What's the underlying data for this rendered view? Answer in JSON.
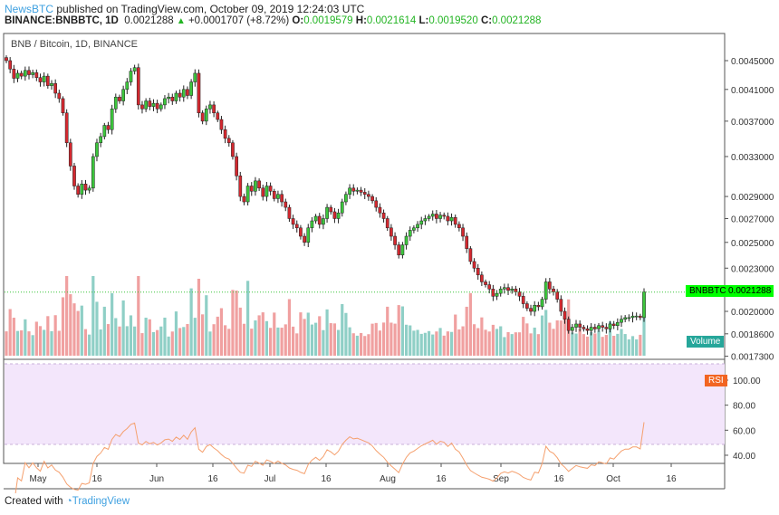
{
  "header": {
    "publisher": "NewsBTC",
    "published_text": "published on TradingView.com, October 09, 2019 12:24:03 UTC",
    "symbol": "BINANCE:BNBBTC, 1D",
    "last": "0.0021288",
    "change": "+0.0001707 (+8.72%)",
    "o_label": "O:",
    "o": "0.0019579",
    "h_label": "H:",
    "h": "0.0021614",
    "l_label": "L:",
    "l": "0.0019520",
    "c_label": "C:",
    "c": "0.0021288"
  },
  "chart_title": "BNB / Bitcoin, 1D, BINANCE",
  "price_tag": {
    "symbol": "BNBBTC",
    "value": "0.0021288"
  },
  "volume_label": "Volume",
  "rsi_label": "RSI",
  "colors": {
    "up": "#3cc63c",
    "down": "#d4282f",
    "vol_up": "#8fcfc6",
    "vol_down": "#f0a0a0",
    "rsi_line": "#f5a06e",
    "rsi_band": "#f3e6fb",
    "tag": "#00ff00"
  },
  "chart_data": {
    "type": "candlestick",
    "scale": "log",
    "price_ticks": [
      "0.0045000",
      "0.0041000",
      "0.0037000",
      "0.0033000",
      "0.0029000",
      "0.0027000",
      "0.0025000",
      "0.0023000",
      "0.0020000",
      "0.0018600",
      "0.0017300"
    ],
    "rsi_ticks": [
      "100.00",
      "80.00",
      "60.00",
      "40.00"
    ],
    "x_ticks": [
      "May",
      "16",
      "Jun",
      "16",
      "Jul",
      "16",
      "Aug",
      "16",
      "Sep",
      "16",
      "Oct",
      "16"
    ],
    "closes": [
      0.0045,
      0.00438,
      0.00425,
      0.00432,
      0.00428,
      0.00436,
      0.0043,
      0.00433,
      0.00426,
      0.0042,
      0.00428,
      0.00415,
      0.00418,
      0.00405,
      0.00398,
      0.0038,
      0.00345,
      0.0032,
      0.003,
      0.00292,
      0.00302,
      0.00296,
      0.00298,
      0.0033,
      0.00345,
      0.00352,
      0.00365,
      0.0036,
      0.00385,
      0.004,
      0.00395,
      0.0041,
      0.0042,
      0.00435,
      0.0044,
      0.0039,
      0.00385,
      0.00395,
      0.00388,
      0.00392,
      0.00385,
      0.0039,
      0.00398,
      0.004,
      0.00395,
      0.00405,
      0.004,
      0.0041,
      0.00402,
      0.0042,
      0.00432,
      0.0038,
      0.0037,
      0.00385,
      0.0039,
      0.0038,
      0.00372,
      0.0036,
      0.0035,
      0.00345,
      0.0033,
      0.0031,
      0.0029,
      0.00285,
      0.003,
      0.00295,
      0.00305,
      0.00298,
      0.0029,
      0.003,
      0.00295,
      0.00288,
      0.00292,
      0.00285,
      0.0028,
      0.0027,
      0.00265,
      0.00262,
      0.00255,
      0.0025,
      0.00262,
      0.00268,
      0.00272,
      0.00265,
      0.0027,
      0.0028,
      0.00276,
      0.0027,
      0.00275,
      0.00285,
      0.00292,
      0.00298,
      0.00295,
      0.00296,
      0.00294,
      0.00292,
      0.0029,
      0.00286,
      0.0028,
      0.00275,
      0.0027,
      0.00262,
      0.00255,
      0.00248,
      0.0024,
      0.00248,
      0.00255,
      0.0026,
      0.00262,
      0.00265,
      0.00268,
      0.0027,
      0.00272,
      0.00274,
      0.0027,
      0.00273,
      0.00272,
      0.00268,
      0.00271,
      0.00265,
      0.00262,
      0.00255,
      0.00245,
      0.00235,
      0.0023,
      0.00225,
      0.0022,
      0.00218,
      0.00215,
      0.0021,
      0.00212,
      0.00215,
      0.00216,
      0.00214,
      0.00215,
      0.00213,
      0.0021,
      0.00205,
      0.00202,
      0.002,
      0.00204,
      0.00203,
      0.00208,
      0.0022,
      0.00215,
      0.00213,
      0.00208,
      0.002,
      0.00195,
      0.00188,
      0.0019,
      0.00192,
      0.0019,
      0.00189,
      0.00188,
      0.0019,
      0.00189,
      0.00191,
      0.0019,
      0.00189,
      0.00192,
      0.00191,
      0.00193,
      0.00195,
      0.00196,
      0.00196,
      0.00197,
      0.00197,
      0.00196,
      0.00213
    ]
  },
  "footer": {
    "created": "Created with",
    "brand": "TradingView"
  }
}
